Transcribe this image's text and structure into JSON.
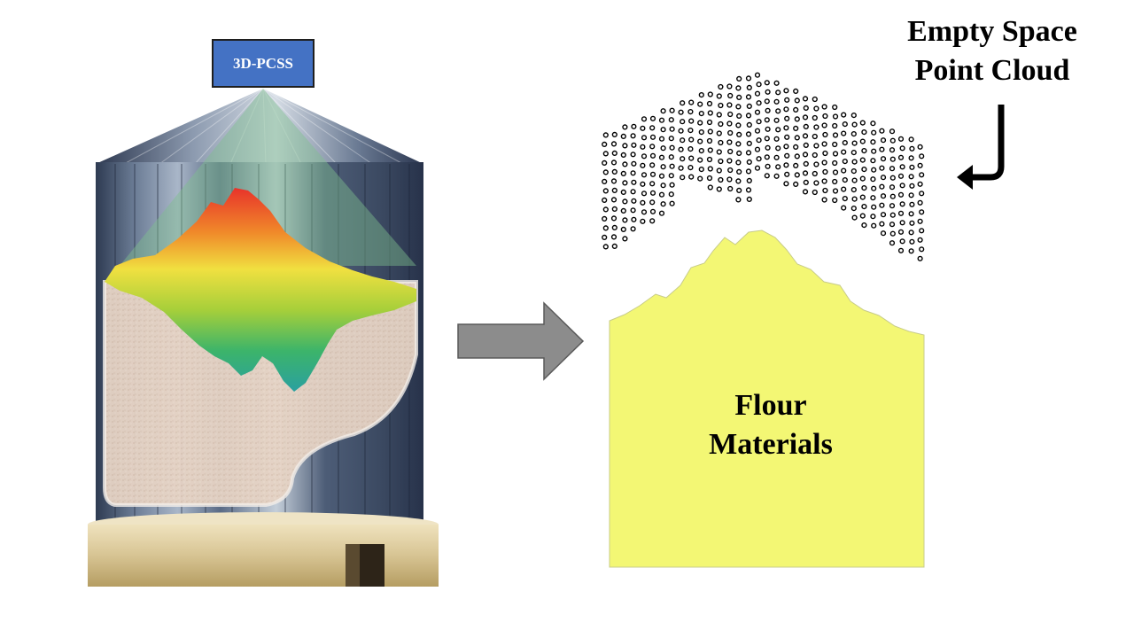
{
  "sensor": {
    "label": "3D-PCSS"
  },
  "point_cloud": {
    "label_line1": "Empty Space",
    "label_line2": "Point Cloud"
  },
  "material": {
    "label_line1": "Flour",
    "label_line2": "Materials"
  },
  "colors": {
    "sensor_box": "#4472c4",
    "flour": "#f3f774",
    "arrow": "#8c8c8c",
    "silo_body": "#3f5068",
    "silo_base": "#d8c79a",
    "heatmap_high": "#e8332a",
    "heatmap_mid": "#f0e040",
    "heatmap_low": "#2aa77a"
  },
  "icons": [
    "silo-icon",
    "process-arrow-icon",
    "return-arrow-icon"
  ]
}
